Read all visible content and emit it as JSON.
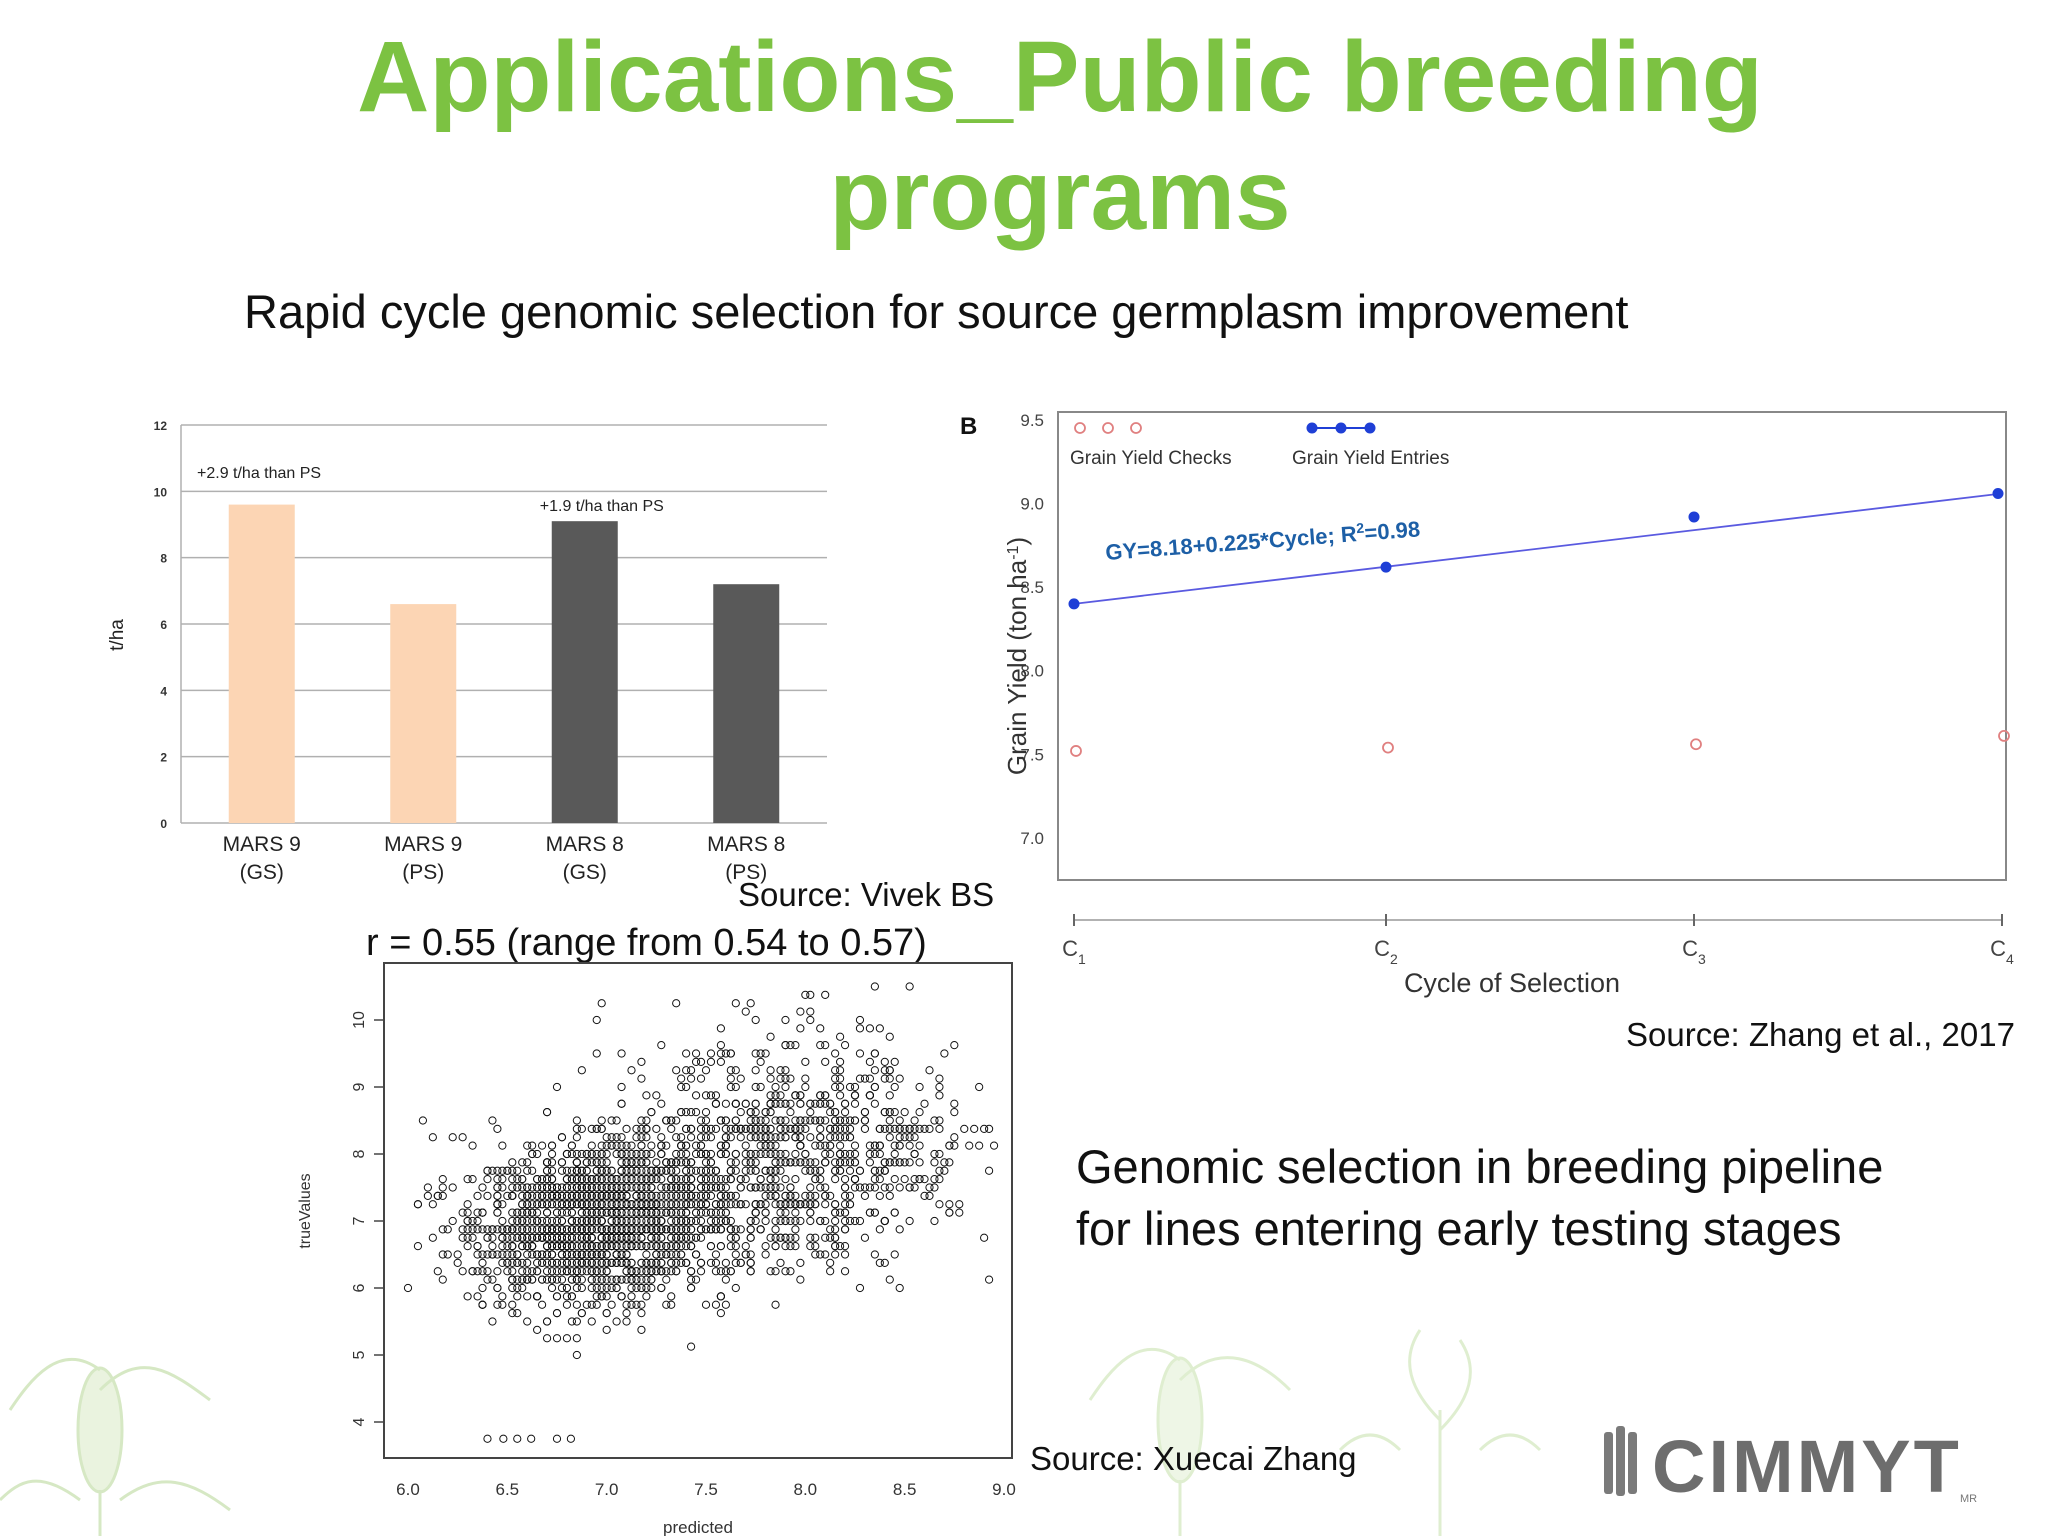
{
  "slide": {
    "title_line1": "Applications_Public breeding",
    "title_line2": "programs",
    "subtitle": "Rapid cycle genomic selection for source germplasm improvement",
    "correlation_note": "r = 0.55 (range from 0.54 to 0.57)",
    "source_vivek": "Source: Vivek BS",
    "source_zhang2017": "Source: Zhang et al., 2017",
    "source_xuecai": "Source: Xuecai Zhang",
    "pipeline_line1": "Genomic selection in breeding pipeline",
    "pipeline_line2": "for lines entering early testing stages",
    "logo_text": "CIMMYT",
    "logo_mark": "MR",
    "colors": {
      "title_green": "#7cc242",
      "bar_peach": "#fcd5b4",
      "bar_gray": "#595959",
      "line_blue": "#1f3fd6",
      "check_red": "#e08080"
    }
  },
  "chart_data": [
    {
      "type": "bar",
      "ylabel": "t/ha",
      "ylim": [
        0,
        12
      ],
      "yticks": [
        "0",
        "2",
        "4",
        "6",
        "8",
        "10",
        "12"
      ],
      "categories": [
        {
          "line1": "MARS 9",
          "line2": "(GS)"
        },
        {
          "line1": "MARS 9",
          "line2": "(PS)"
        },
        {
          "line1": "MARS 8",
          "line2": "(GS)"
        },
        {
          "line1": "MARS 8",
          "line2": "(PS)"
        }
      ],
      "values": [
        9.6,
        6.6,
        9.1,
        7.2
      ],
      "bar_colors": [
        "#fcd5b4",
        "#fcd5b4",
        "#595959",
        "#595959"
      ],
      "annotations": [
        {
          "text": "+2.9 t/ha than PS",
          "near_category": 0,
          "y": 10.4
        },
        {
          "text": "+1.9 t/ha than PS",
          "near_category": 2,
          "y": 9.4
        }
      ]
    },
    {
      "type": "scatter",
      "panel_label": "B",
      "xlabel": "Cycle of Selection",
      "ylabel_main": "Grain Yield (ton ha",
      "ylabel_sup": "-1",
      "ylabel_close": ")",
      "ylim": [
        6.7,
        9.5
      ],
      "yticks": [
        "7.0",
        "7.5",
        "8.0",
        "8.5",
        "9.0",
        "9.5"
      ],
      "categories": [
        {
          "main": "C",
          "sub": "1"
        },
        {
          "main": "C",
          "sub": "2"
        },
        {
          "main": "C",
          "sub": "3"
        },
        {
          "main": "C",
          "sub": "4"
        }
      ],
      "legend": [
        "Grain Yield Checks",
        "Grain Yield Entries"
      ],
      "series": [
        {
          "name": "Grain Yield Checks",
          "values": [
            7.52,
            7.54,
            7.56,
            7.61
          ]
        },
        {
          "name": "Grain Yield Entries",
          "values": [
            8.4,
            8.62,
            8.92,
            9.06
          ]
        }
      ],
      "fit": {
        "intercept": 8.18,
        "slope": 0.225,
        "label_main": "GY=8.18+0.225*Cycle; R",
        "label_sup": "2",
        "label_end": "=0.98"
      }
    },
    {
      "type": "scatter",
      "xlabel": "predicted",
      "ylabel": "trueValues",
      "xlim": [
        5.9,
        9.05
      ],
      "ylim": [
        3.5,
        10.5
      ],
      "xticks": [
        "6.0",
        "6.5",
        "7.0",
        "7.5",
        "8.0",
        "8.5",
        "9.0"
      ],
      "yticks": [
        "4",
        "5",
        "6",
        "7",
        "8",
        "9",
        "10"
      ],
      "r": 0.55,
      "n_points_approx": 2600
    }
  ]
}
